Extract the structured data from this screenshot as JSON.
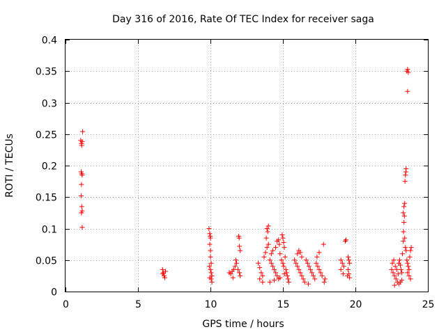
{
  "chart_data": {
    "type": "scatter",
    "title": "Day 316 of 2016, Rate Of TEC Index for receiver saga",
    "xlabel": "GPS time / hours",
    "ylabel": "ROTI / TECUs",
    "xlim": [
      0,
      25
    ],
    "ylim": [
      0,
      0.4
    ],
    "xticks": [
      0,
      5,
      10,
      15,
      20,
      25
    ],
    "xtick_labels": [
      "0",
      "5",
      "10",
      "15",
      "20",
      "25"
    ],
    "yticks": [
      0,
      0.05,
      0.1,
      0.15,
      0.2,
      0.25,
      0.3,
      0.35,
      0.4
    ],
    "ytick_labels": [
      "0",
      "0.05",
      "0.1",
      "0.15",
      "0.2",
      "0.25",
      "0.3",
      "0.35",
      "0.4"
    ],
    "grid": true,
    "marker": "+",
    "marker_color": "#ff0000",
    "series": [
      {
        "name": "ROTI",
        "points": [
          [
            1.05,
            0.24
          ],
          [
            1.1,
            0.235
          ],
          [
            1.12,
            0.232
          ],
          [
            1.15,
            0.238
          ],
          [
            1.18,
            0.254
          ],
          [
            1.08,
            0.19
          ],
          [
            1.12,
            0.187
          ],
          [
            1.15,
            0.185
          ],
          [
            1.1,
            0.17
          ],
          [
            1.08,
            0.152
          ],
          [
            1.12,
            0.135
          ],
          [
            1.15,
            0.128
          ],
          [
            1.1,
            0.125
          ],
          [
            1.15,
            0.102
          ],
          [
            6.7,
            0.035
          ],
          [
            6.75,
            0.03
          ],
          [
            6.8,
            0.025
          ],
          [
            6.85,
            0.022
          ],
          [
            6.7,
            0.028
          ],
          [
            6.9,
            0.032
          ],
          [
            9.9,
            0.1
          ],
          [
            9.95,
            0.092
          ],
          [
            9.98,
            0.088
          ],
          [
            10.0,
            0.085
          ],
          [
            9.95,
            0.075
          ],
          [
            10.0,
            0.065
          ],
          [
            10.05,
            0.045
          ],
          [
            9.92,
            0.04
          ],
          [
            10.0,
            0.035
          ],
          [
            10.05,
            0.03
          ],
          [
            10.1,
            0.025
          ],
          [
            9.95,
            0.022
          ],
          [
            10.05,
            0.02
          ],
          [
            10.1,
            0.015
          ],
          [
            10.0,
            0.055
          ],
          [
            11.3,
            0.03
          ],
          [
            11.4,
            0.028
          ],
          [
            11.5,
            0.032
          ],
          [
            11.6,
            0.035
          ],
          [
            11.7,
            0.04
          ],
          [
            11.8,
            0.045
          ],
          [
            11.9,
            0.035
          ],
          [
            12.0,
            0.03
          ],
          [
            12.05,
            0.025
          ],
          [
            11.55,
            0.022
          ],
          [
            11.95,
            0.088
          ],
          [
            11.98,
            0.085
          ],
          [
            12.0,
            0.072
          ],
          [
            12.05,
            0.065
          ],
          [
            11.75,
            0.05
          ],
          [
            13.3,
            0.045
          ],
          [
            13.4,
            0.038
          ],
          [
            13.5,
            0.03
          ],
          [
            13.6,
            0.025
          ],
          [
            13.4,
            0.02
          ],
          [
            13.7,
            0.055
          ],
          [
            13.8,
            0.062
          ],
          [
            13.9,
            0.07
          ],
          [
            14.0,
            0.075
          ],
          [
            13.85,
            0.085
          ],
          [
            13.95,
            0.095
          ],
          [
            14.0,
            0.104
          ],
          [
            13.9,
            0.1
          ],
          [
            14.1,
            0.05
          ],
          [
            14.2,
            0.045
          ],
          [
            14.3,
            0.04
          ],
          [
            14.4,
            0.035
          ],
          [
            14.5,
            0.03
          ],
          [
            14.6,
            0.025
          ],
          [
            14.7,
            0.02
          ],
          [
            14.2,
            0.06
          ],
          [
            14.3,
            0.065
          ],
          [
            14.5,
            0.07
          ],
          [
            14.6,
            0.08
          ],
          [
            14.7,
            0.082
          ],
          [
            14.75,
            0.075
          ],
          [
            14.8,
            0.06
          ],
          [
            14.9,
            0.05
          ],
          [
            15.0,
            0.045
          ],
          [
            15.05,
            0.04
          ],
          [
            14.95,
            0.09
          ],
          [
            15.0,
            0.085
          ],
          [
            15.05,
            0.078
          ],
          [
            15.1,
            0.07
          ],
          [
            15.15,
            0.055
          ],
          [
            15.2,
            0.035
          ],
          [
            15.25,
            0.03
          ],
          [
            15.3,
            0.025
          ],
          [
            15.35,
            0.02
          ],
          [
            15.4,
            0.015
          ],
          [
            14.1,
            0.015
          ],
          [
            14.4,
            0.018
          ],
          [
            14.8,
            0.022
          ],
          [
            15.1,
            0.028
          ],
          [
            13.6,
            0.015
          ],
          [
            15.8,
            0.05
          ],
          [
            15.9,
            0.045
          ],
          [
            16.0,
            0.04
          ],
          [
            16.1,
            0.035
          ],
          [
            16.2,
            0.03
          ],
          [
            16.3,
            0.025
          ],
          [
            16.4,
            0.02
          ],
          [
            16.5,
            0.015
          ],
          [
            16.0,
            0.06
          ],
          [
            16.1,
            0.065
          ],
          [
            16.2,
            0.062
          ],
          [
            16.3,
            0.055
          ],
          [
            16.6,
            0.05
          ],
          [
            16.7,
            0.045
          ],
          [
            16.8,
            0.04
          ],
          [
            16.9,
            0.035
          ],
          [
            17.0,
            0.03
          ],
          [
            17.1,
            0.025
          ],
          [
            17.2,
            0.02
          ],
          [
            16.75,
            0.012
          ],
          [
            17.3,
            0.045
          ],
          [
            17.4,
            0.04
          ],
          [
            17.5,
            0.035
          ],
          [
            17.6,
            0.03
          ],
          [
            17.7,
            0.025
          ],
          [
            17.5,
            0.062
          ],
          [
            17.8,
            0.075
          ],
          [
            17.9,
            0.02
          ],
          [
            17.85,
            0.015
          ],
          [
            17.35,
            0.055
          ],
          [
            19.0,
            0.05
          ],
          [
            19.1,
            0.045
          ],
          [
            19.2,
            0.04
          ],
          [
            19.0,
            0.035
          ],
          [
            19.15,
            0.028
          ],
          [
            19.3,
            0.08
          ],
          [
            19.35,
            0.082
          ],
          [
            19.5,
            0.055
          ],
          [
            19.55,
            0.05
          ],
          [
            19.6,
            0.045
          ],
          [
            19.5,
            0.035
          ],
          [
            19.55,
            0.028
          ],
          [
            19.6,
            0.022
          ],
          [
            19.45,
            0.025
          ],
          [
            22.5,
            0.035
          ],
          [
            22.6,
            0.03
          ],
          [
            22.7,
            0.025
          ],
          [
            22.8,
            0.02
          ],
          [
            22.9,
            0.015
          ],
          [
            22.55,
            0.045
          ],
          [
            22.65,
            0.05
          ],
          [
            22.75,
            0.04
          ],
          [
            22.85,
            0.035
          ],
          [
            22.95,
            0.028
          ],
          [
            23.0,
            0.045
          ],
          [
            23.05,
            0.05
          ],
          [
            23.1,
            0.042
          ],
          [
            23.15,
            0.035
          ],
          [
            23.2,
            0.03
          ],
          [
            23.25,
            0.06
          ],
          [
            23.3,
            0.08
          ],
          [
            23.32,
            0.095
          ],
          [
            23.35,
            0.11
          ],
          [
            23.38,
            0.12
          ],
          [
            23.4,
            0.14
          ],
          [
            23.42,
            0.175
          ],
          [
            23.45,
            0.185
          ],
          [
            23.48,
            0.19
          ],
          [
            23.5,
            0.195
          ],
          [
            23.3,
            0.125
          ],
          [
            23.35,
            0.135
          ],
          [
            23.4,
            0.085
          ],
          [
            23.45,
            0.07
          ],
          [
            23.5,
            0.065
          ],
          [
            23.55,
            0.05
          ],
          [
            23.6,
            0.045
          ],
          [
            23.65,
            0.04
          ],
          [
            23.7,
            0.035
          ],
          [
            23.75,
            0.055
          ],
          [
            23.8,
            0.065
          ],
          [
            23.85,
            0.07
          ],
          [
            23.6,
            0.03
          ],
          [
            23.7,
            0.025
          ],
          [
            23.8,
            0.02
          ],
          [
            23.55,
            0.35
          ],
          [
            23.6,
            0.353
          ],
          [
            23.65,
            0.348
          ],
          [
            23.6,
            0.318
          ],
          [
            23.0,
            0.012
          ],
          [
            23.1,
            0.015
          ],
          [
            23.2,
            0.018
          ],
          [
            22.7,
            0.01
          ]
        ]
      }
    ]
  }
}
